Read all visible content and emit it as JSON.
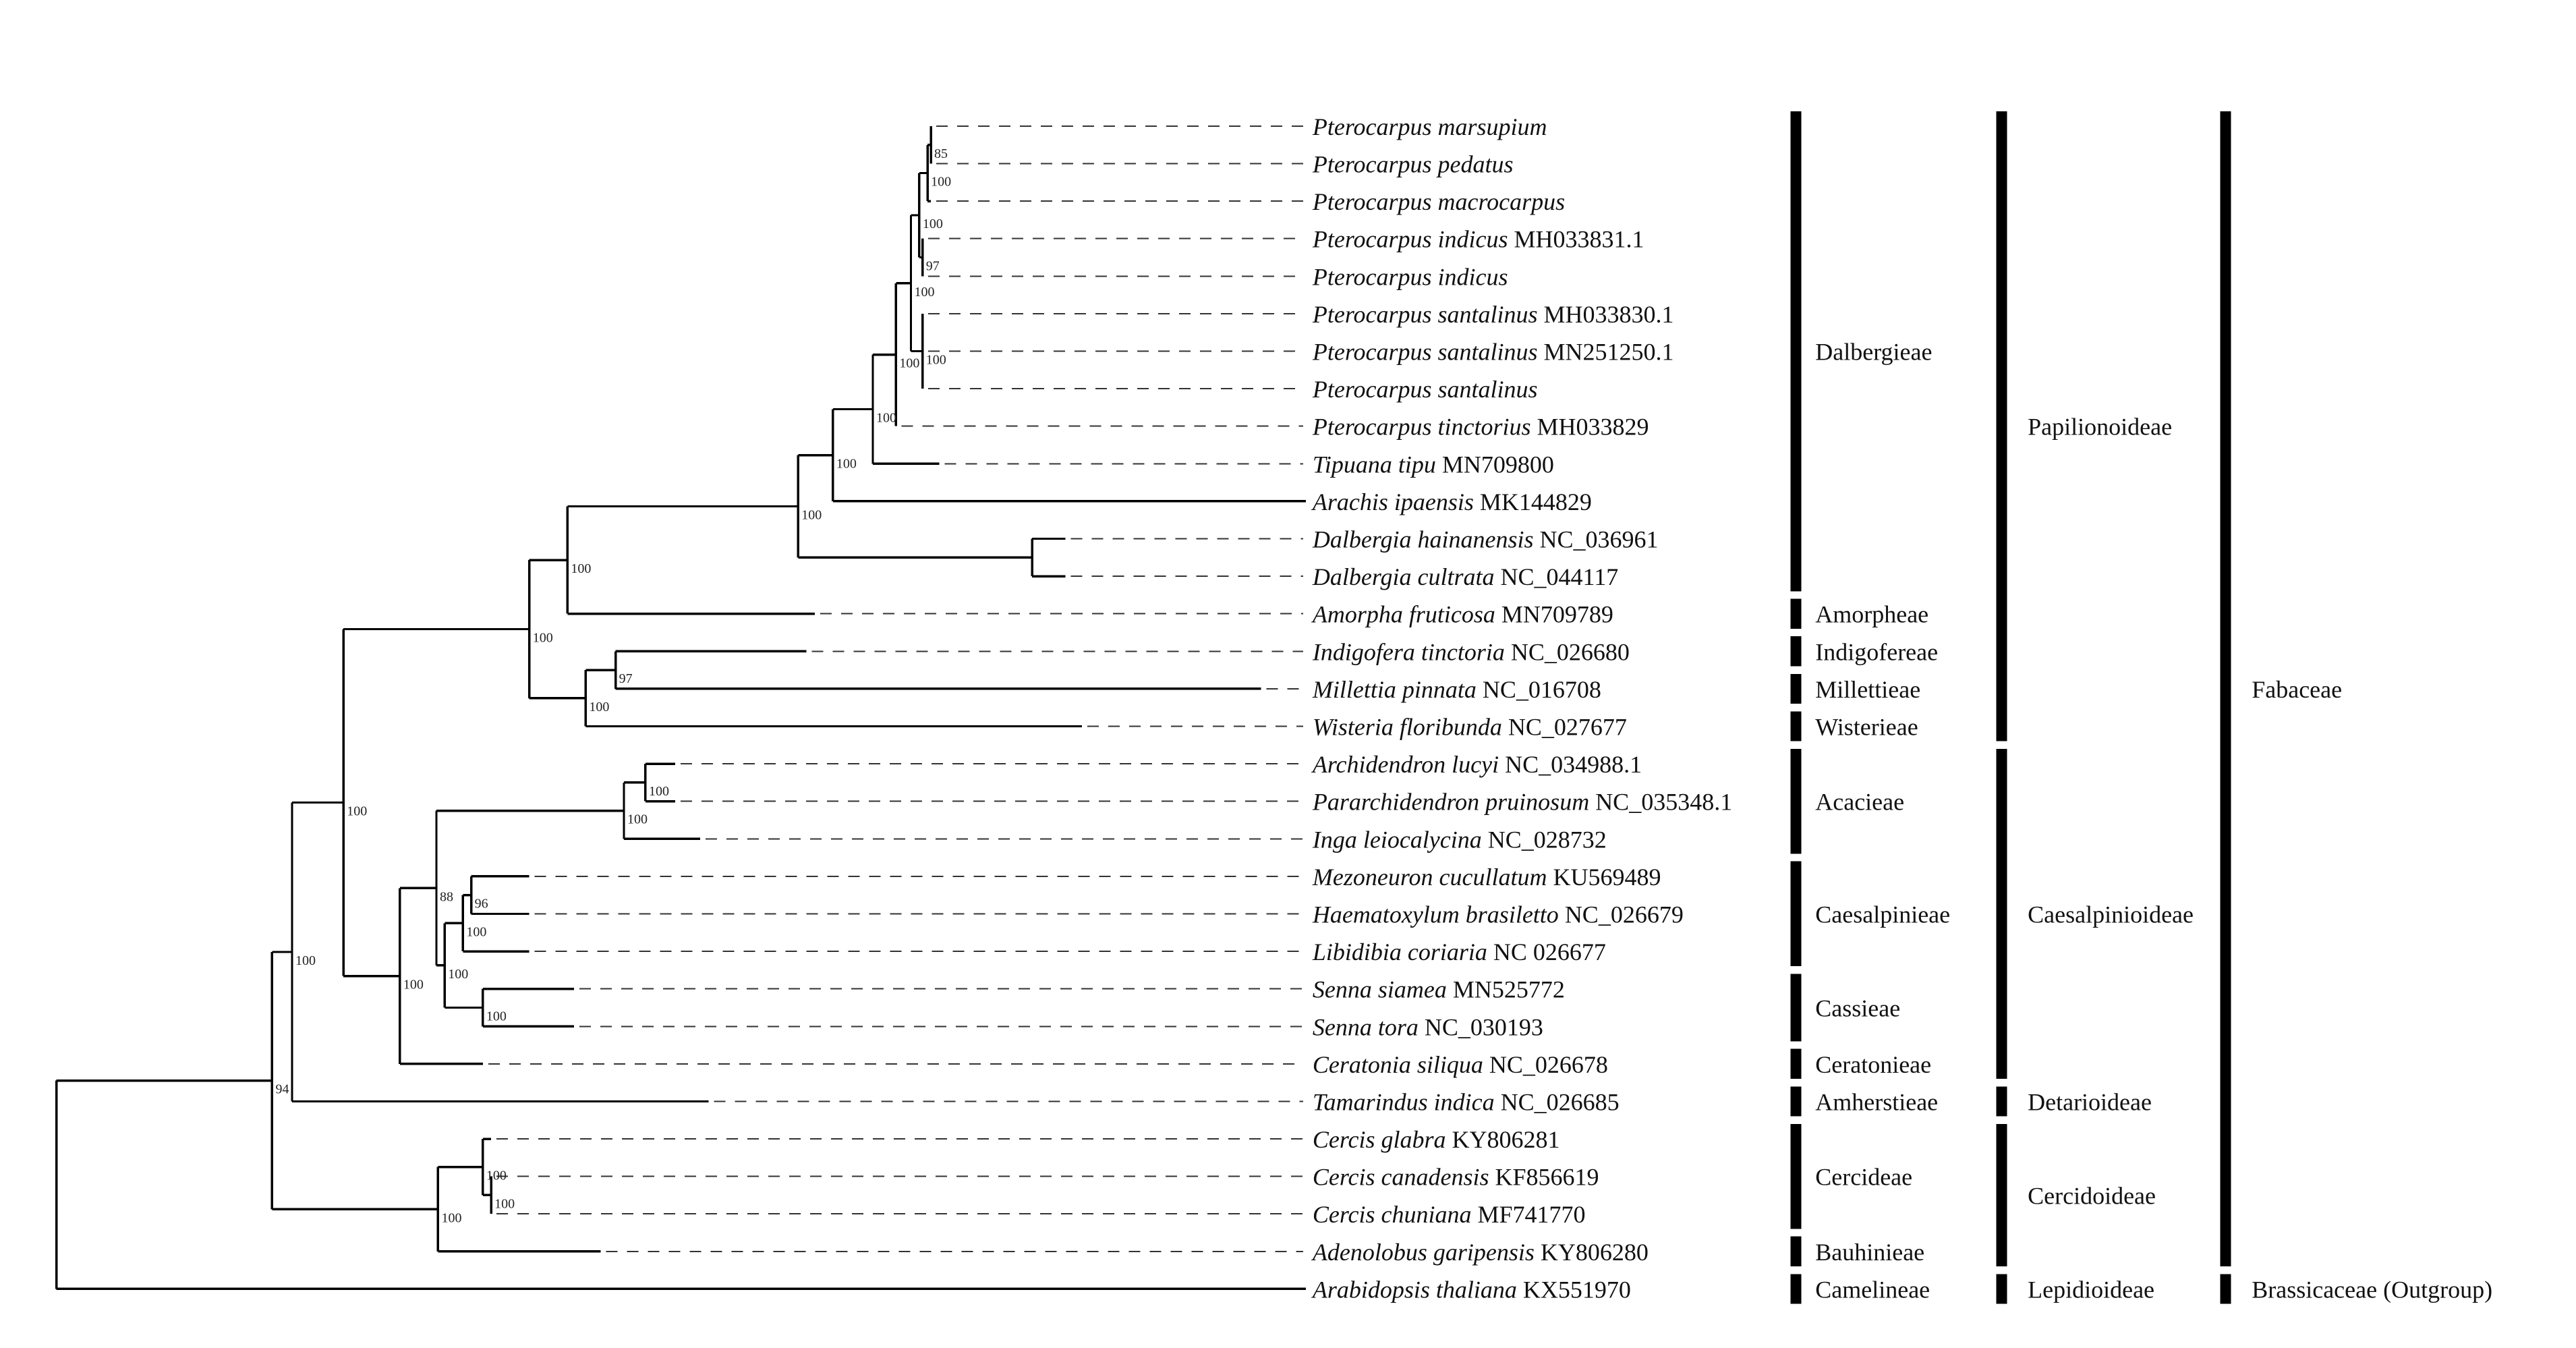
{
  "taxa": [
    {
      "sp": "Pterocarpus marsupium",
      "acc": ""
    },
    {
      "sp": "Pterocarpus pedatus",
      "acc": ""
    },
    {
      "sp": "Pterocarpus macrocarpus",
      "acc": ""
    },
    {
      "sp": "Pterocarpus indicus",
      "acc": "MH033831.1"
    },
    {
      "sp": "Pterocarpus indicus",
      "acc": ""
    },
    {
      "sp": "Pterocarpus santalinus",
      "acc": "MH033830.1"
    },
    {
      "sp": "Pterocarpus santalinus",
      "acc": "MN251250.1"
    },
    {
      "sp": "Pterocarpus santalinus",
      "acc": ""
    },
    {
      "sp": "Pterocarpus tinctorius",
      "acc": "MH033829"
    },
    {
      "sp": "Tipuana tipu",
      "acc": "MN709800"
    },
    {
      "sp": "Arachis ipaensis",
      "acc": " MK144829"
    },
    {
      "sp": "Dalbergia hainanensis",
      "acc": "NC_036961"
    },
    {
      "sp": "Dalbergia cultrata",
      "acc": "NC_044117"
    },
    {
      "sp": "Amorpha fruticosa",
      "acc": "MN709789"
    },
    {
      "sp": "Indigofera tinctoria",
      "acc": "NC_026680"
    },
    {
      "sp": "Millettia pinnata",
      "acc": "NC_016708"
    },
    {
      "sp": "Wisteria floribunda",
      "acc": "NC_027677"
    },
    {
      "sp": "Archidendron lucyi",
      "acc": "NC_034988.1"
    },
    {
      "sp": "Pararchidendron pruinosum",
      "acc": "NC_035348.1"
    },
    {
      "sp": "Inga leiocalycina",
      "acc": "NC_028732"
    },
    {
      "sp": "Mezoneuron cucullatum",
      "acc": "KU569489"
    },
    {
      "sp": "Haematoxylum brasiletto",
      "acc": "NC_026679"
    },
    {
      "sp": "Libidibia coriaria",
      "acc": "NC 026677"
    },
    {
      "sp": "Senna siamea",
      "acc": "MN525772"
    },
    {
      "sp": "Senna tora",
      "acc": "NC_030193"
    },
    {
      "sp": "Ceratonia siliqua",
      "acc": "NC_026678"
    },
    {
      "sp": "Tamarindus indica",
      "acc": "NC_026685"
    },
    {
      "sp": "Cercis glabra",
      "acc": "KY806281"
    },
    {
      "sp": "Cercis canadensis",
      "acc": "KF856619"
    },
    {
      "sp": "Cercis chuniana",
      "acc": "MF741770"
    },
    {
      "sp": "Adenolobus garipensis",
      "acc": "KY806280"
    },
    {
      "sp": "Arabidopsis thaliana",
      "acc": "KX551970"
    }
  ],
  "support_values": [
    "85",
    "100",
    "100",
    "97",
    "100",
    "100",
    "100",
    "100",
    "100",
    "100",
    "100",
    "100",
    "97",
    "100",
    "100",
    "100",
    "100",
    "88",
    "96",
    "100",
    "100",
    "100",
    "100",
    "100",
    "94",
    "100",
    "100",
    "100"
  ],
  "tribes": [
    "Dalbergieae",
    "Amorpheae",
    "Indigofereae",
    "Millettieae",
    "Wisterieae",
    "Acacieae",
    "Caesalpinieae",
    "Cassieae",
    "Ceratonieae",
    "Amherstieae",
    "Cercideae",
    "Bauhinieae",
    "Camelineae"
  ],
  "subfamilies": [
    "Papilionoideae",
    "Caesalpinioideae",
    "Detarioideae",
    "Cercidoideae",
    "Lepidioideae"
  ],
  "families": [
    "Fabaceae",
    "Brassicaceae (Outgroup)"
  ]
}
